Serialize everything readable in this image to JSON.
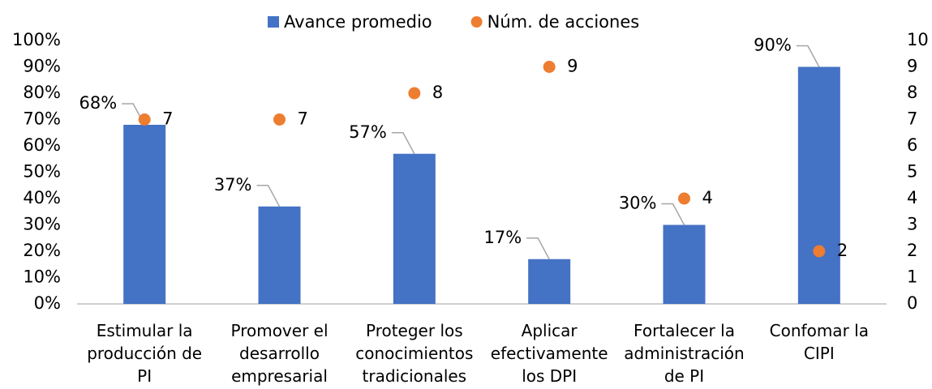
{
  "chart_data": {
    "type": "bar",
    "categories": [
      "Estimular la producción de PI",
      "Promover el desarrollo empresarial",
      "Proteger los conocimientos tradicionales",
      "Aplicar efectivamente los DPI",
      "Fortalecer la administración de PI",
      "Confomar la CIPI"
    ],
    "series": [
      {
        "name": "Avance promedio",
        "color": "#4472c4",
        "values": [
          68,
          37,
          57,
          17,
          30,
          90
        ],
        "value_labels": [
          "68%",
          "37%",
          "57%",
          "17%",
          "30%",
          "90%"
        ]
      },
      {
        "name": "Núm. de acciones",
        "color": "#ed7d31",
        "type": "scatter",
        "axis": "y2",
        "values": [
          7,
          7,
          8,
          9,
          4,
          2
        ]
      }
    ],
    "ylim": [
      0,
      100
    ],
    "yticks": [
      {
        "value": 0,
        "label": "0%"
      },
      {
        "value": 10,
        "label": "10%"
      },
      {
        "value": 20,
        "label": "20%"
      },
      {
        "value": 30,
        "label": "30%"
      },
      {
        "value": 40,
        "label": "40%"
      },
      {
        "value": 50,
        "label": "50%"
      },
      {
        "value": 60,
        "label": "60%"
      },
      {
        "value": 70,
        "label": "70%"
      },
      {
        "value": 80,
        "label": "80%"
      },
      {
        "value": 90,
        "label": "90%"
      },
      {
        "value": 100,
        "label": "100%"
      }
    ],
    "y2lim": [
      0,
      10
    ],
    "y2ticks": [
      0,
      1,
      2,
      3,
      4,
      5,
      6,
      7,
      8,
      9,
      10
    ],
    "legend": "top",
    "grid": false
  }
}
